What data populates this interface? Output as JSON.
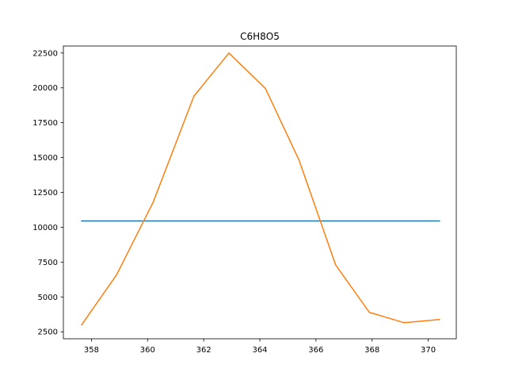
{
  "chart_data": {
    "type": "line",
    "title": "C6H8O5",
    "xlabel": "",
    "ylabel": "",
    "xlim": [
      357.0,
      371.0
    ],
    "ylim": [
      2000,
      23000
    ],
    "x_ticks": [
      358,
      360,
      362,
      364,
      366,
      368,
      370
    ],
    "y_ticks": [
      2500,
      5000,
      7500,
      10000,
      12500,
      15000,
      17500,
      20000,
      22500
    ],
    "grid": false,
    "legend": "none",
    "series": [
      {
        "color": "#1f77b4",
        "x": [
          357.65,
          370.4
        ],
        "y": [
          10450,
          10450
        ]
      },
      {
        "color": "#ff7f0e",
        "x": [
          357.65,
          358.9,
          360.2,
          361.65,
          362.9,
          364.2,
          365.4,
          366.7,
          367.9,
          369.15,
          370.4
        ],
        "y": [
          3000,
          6600,
          11800,
          19400,
          22500,
          19950,
          14800,
          7300,
          3900,
          3150,
          3380
        ]
      }
    ]
  }
}
